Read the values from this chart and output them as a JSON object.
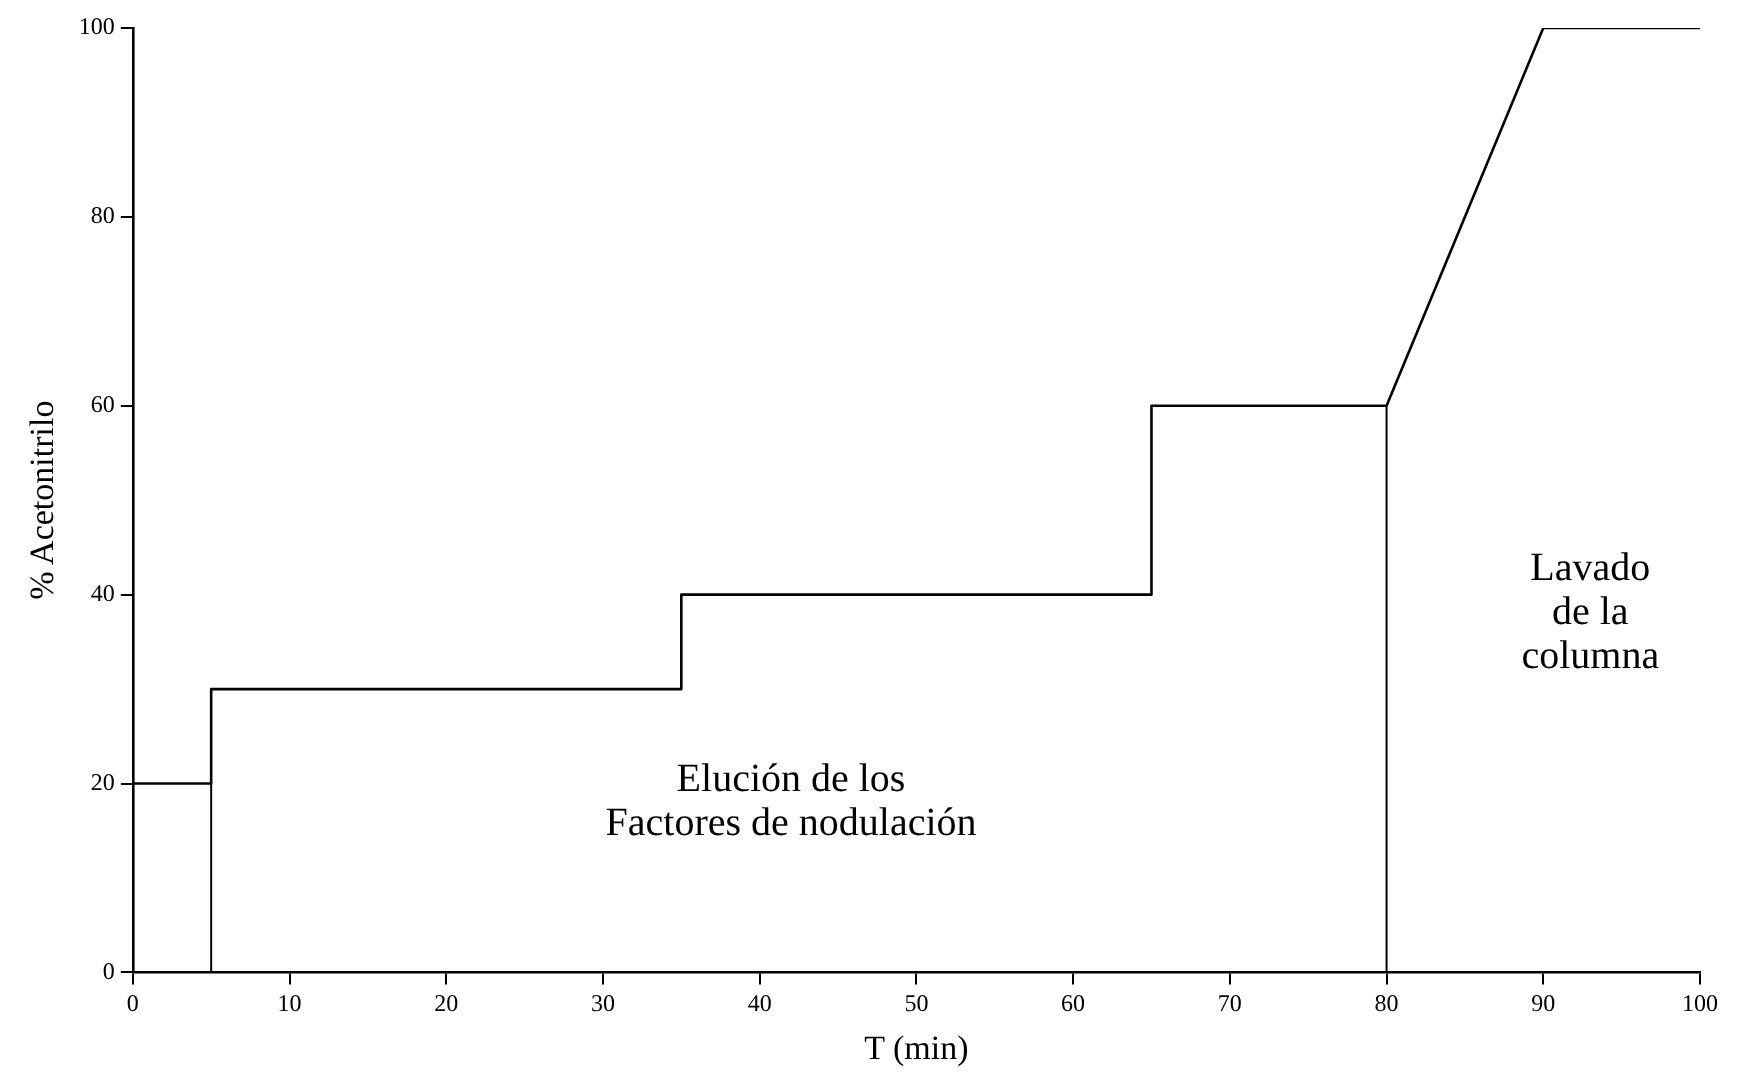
{
  "chart_data": {
    "type": "line",
    "xlabel": "T (min)",
    "ylabel": "% Acetonitrilo",
    "series": [
      {
        "color": "#000000",
        "x": [
          0,
          5,
          5,
          35,
          35,
          65,
          65,
          80,
          90,
          100
        ],
        "values": [
          20,
          20,
          30,
          30,
          40,
          40,
          60,
          60,
          100,
          100
        ]
      }
    ],
    "xlim": [
      0,
      100
    ],
    "xticks": [
      0,
      10,
      20,
      30,
      40,
      50,
      60,
      70,
      80,
      90,
      100
    ],
    "ylim": [
      0,
      100
    ],
    "yticks": [
      0,
      20,
      40,
      60,
      80,
      100
    ],
    "ref_lines": [
      {
        "axis": "x",
        "value": 5,
        "color": "#000000"
      },
      {
        "axis": "x",
        "value": 80,
        "color": "#000000"
      }
    ],
    "annotations": [
      "Elución de los\nFactores de nodulación",
      "Lavado\nde la\ncolumna"
    ],
    "grid": false,
    "legend": false,
    "marker": "none",
    "line_style": "solid"
  }
}
